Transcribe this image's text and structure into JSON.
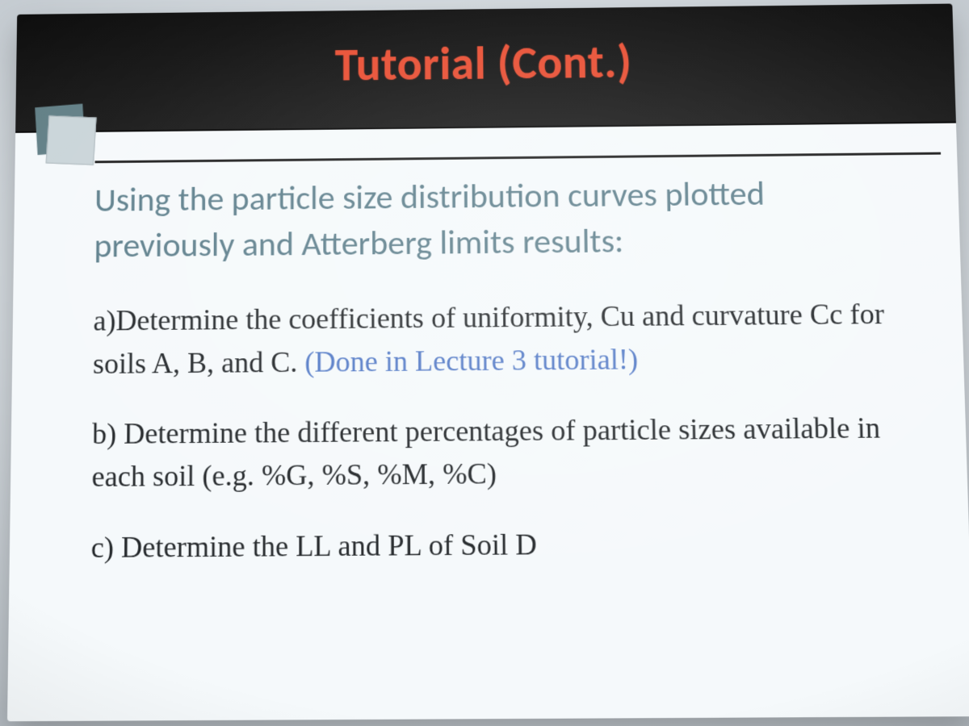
{
  "slide": {
    "title": "Tutorial (Cont.)",
    "title_color": "#e84a2e",
    "title_bar_bg": "#0a0a0a",
    "title_fontsize_pt": 44,
    "rule_color": "#1a1a1a",
    "intro_text": "Using the particle size distribution curves plotted previously and Atterberg limits results:",
    "intro_color": "#5b7d8a",
    "intro_fontsize_pt": 32,
    "items": [
      {
        "label": "a)",
        "text": "Determine the coefficients of uniformity, Cu and curvature Cc for soils A, B, and C.",
        "hint": " (Done in Lecture 3 tutorial!)"
      },
      {
        "label": "b)",
        "text": " Determine the different percentages of particle sizes available in each soil (e.g. %G, %S, %M, %C)",
        "hint": ""
      },
      {
        "label": "c)",
        "text": " Determine the LL and PL of Soil D",
        "hint": ""
      }
    ],
    "item_color": "#1f2326",
    "item_fontsize_pt": 28,
    "hint_color": "#4f77c5",
    "deco_icon": {
      "back_color": "#5f7d84",
      "front_color": "#c9d4d8"
    },
    "background_color": "#f5f9fb"
  }
}
